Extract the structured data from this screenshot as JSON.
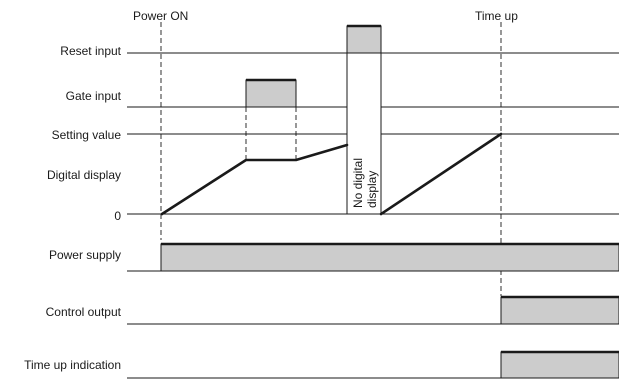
{
  "events": {
    "power_on": "Power ON",
    "time_up": "Time up"
  },
  "signals": {
    "reset_input": "Reset input",
    "gate_input": "Gate input",
    "setting_value": "Setting value",
    "digital_display": "Digital display",
    "zero": "0",
    "power_supply": "Power supply",
    "control_output": "Control output",
    "time_up_indication": "Time up indication"
  },
  "annotations": {
    "no_display_line1": "No digital",
    "no_display_line2": "display"
  }
}
